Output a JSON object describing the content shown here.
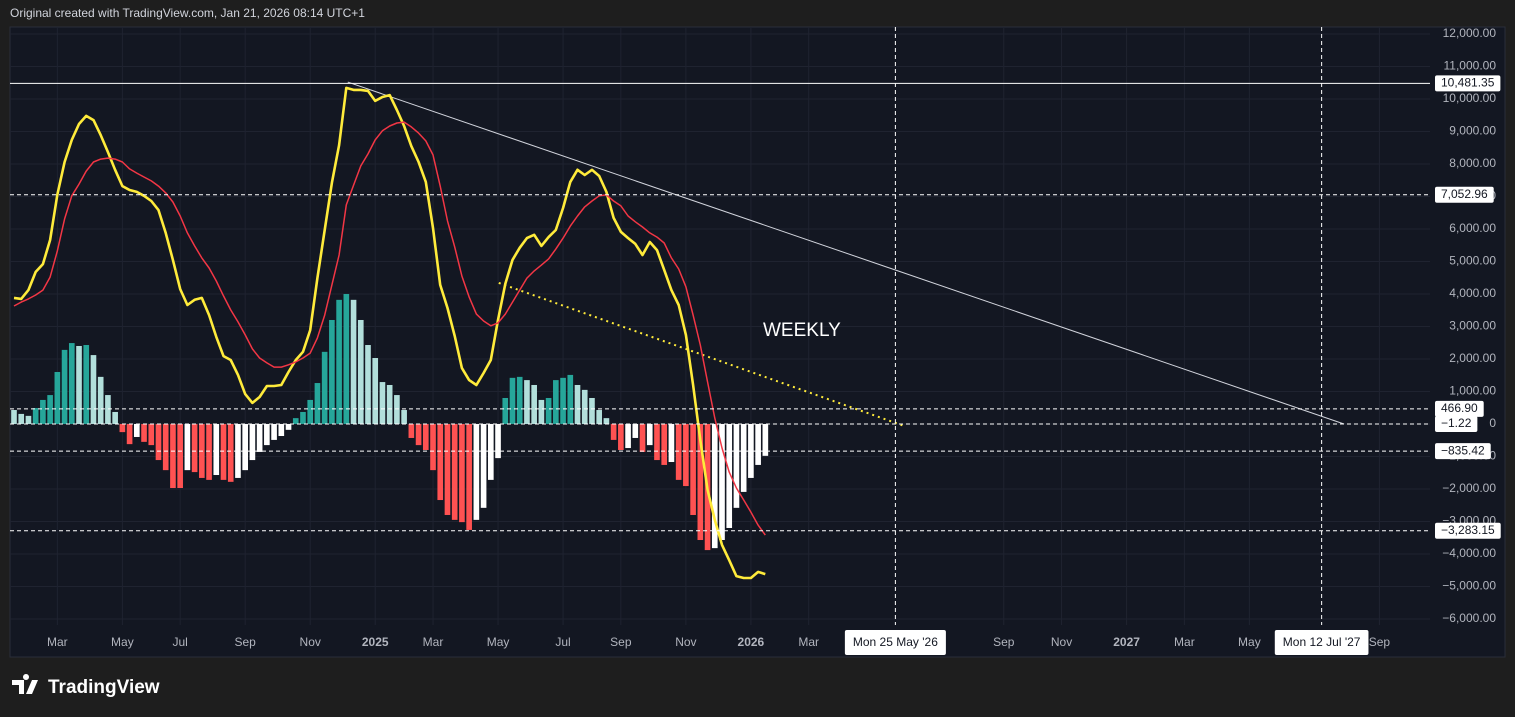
{
  "chart_data": {
    "type": "macd",
    "header": "Original created with TradingView.com, Jan 21, 2026 08:14 UTC+1",
    "brand": "TradingView",
    "annotation": "WEEKLY",
    "categories": [
      null,
      null,
      null,
      null,
      null,
      null,
      "Mar",
      null,
      null,
      null,
      null,
      null,
      null,
      null,
      null,
      "May",
      null,
      null,
      null,
      null,
      null,
      null,
      null,
      "Jul",
      null,
      null,
      null,
      null,
      null,
      null,
      null,
      null,
      "Sep",
      null,
      null,
      null,
      null,
      null,
      null,
      null,
      null,
      "Nov",
      null,
      null,
      null,
      null,
      null,
      null,
      null,
      null,
      "2025",
      null,
      null,
      null,
      null,
      null,
      null,
      null,
      "Mar",
      null,
      null,
      null,
      null,
      null,
      null,
      null,
      null,
      "May",
      null,
      null,
      null,
      null,
      null,
      null,
      null,
      null,
      "Jul",
      null,
      null,
      null,
      null,
      null,
      null,
      null,
      "Sep",
      null,
      null,
      null,
      null,
      null,
      null,
      null,
      null,
      "Nov",
      null,
      null,
      null,
      null,
      null,
      null,
      null,
      null,
      "2026",
      null,
      null,
      null,
      null,
      null,
      null,
      null,
      "Mar",
      null,
      null,
      null,
      null,
      null,
      null,
      null,
      null,
      null,
      null,
      null,
      "Mon 25 May '26",
      null,
      null,
      null,
      null,
      null,
      null,
      null,
      null,
      null,
      null,
      null,
      null,
      null,
      null,
      "Sep",
      null,
      null,
      null,
      null,
      null,
      null,
      null,
      "Nov",
      null,
      null,
      null,
      null,
      null,
      null,
      null,
      null,
      "2027",
      null,
      null,
      null,
      null,
      null,
      null,
      null,
      "Mar",
      null,
      null,
      null,
      null,
      null,
      null,
      null,
      null,
      "May",
      null,
      null,
      null,
      null,
      null,
      null,
      null,
      null,
      null,
      "Mon 12 Jul '27",
      null,
      null,
      null,
      null,
      null,
      null,
      null,
      "Sep",
      null,
      null,
      null,
      null,
      null,
      null
    ],
    "crosshairs": [
      "Mon 25 May '26",
      "Mon 12 Jul '27"
    ],
    "histogram": {
      "colors": {
        "pos_up": "#26a69a",
        "pos_down": "#b2dfdb",
        "neg_down": "#ff5252",
        "neg_up": "#ffffff"
      },
      "values": [
        430,
        310,
        250,
        490,
        740,
        890,
        1600,
        2280,
        2490,
        2400,
        2430,
        2120,
        1450,
        890,
        370,
        -250,
        -620,
        -400,
        -550,
        -650,
        -1110,
        -1420,
        -1970,
        -1970,
        -1420,
        -1480,
        -1660,
        -1720,
        -1570,
        -1720,
        -1780,
        -1660,
        -1420,
        -1110,
        -860,
        -650,
        -490,
        -370,
        -180,
        180,
        370,
        740,
        1260,
        2220,
        3200,
        3820,
        4000,
        3820,
        3200,
        2430,
        2030,
        1290,
        1200,
        890,
        430,
        -430,
        -650,
        -800,
        -1420,
        -2340,
        -2800,
        -2950,
        -3020,
        -3260,
        -2950,
        -2580,
        -1720,
        -1050,
        800,
        1420,
        1450,
        1350,
        1200,
        740,
        800,
        1350,
        1420,
        1510,
        1200,
        1050,
        800,
        430,
        180,
        -490,
        -800,
        -740,
        -430,
        -860,
        -650,
        -1110,
        -1260,
        -1170,
        -1720,
        -1910,
        -2800,
        -3570,
        -3880,
        -3820,
        -3570,
        -3200,
        -2580,
        -2090,
        -1660,
        -1260,
        -980,
        null,
        null,
        null,
        null,
        null,
        null,
        null,
        null,
        null,
        null,
        null,
        null,
        null,
        null,
        null,
        null,
        null,
        null,
        null,
        null,
        null,
        null,
        null,
        null,
        null,
        null,
        null,
        null,
        null,
        null,
        null,
        null,
        null,
        null,
        null,
        null,
        null,
        null,
        null,
        null,
        null,
        null,
        null,
        null,
        null,
        null,
        null,
        null,
        null,
        null,
        null,
        null,
        null,
        null,
        null,
        null,
        null,
        null,
        null,
        null,
        null,
        null,
        null,
        null,
        null,
        null,
        null,
        null,
        null,
        null,
        null,
        null,
        null,
        null,
        null,
        null,
        null,
        null,
        null,
        null,
        null,
        null,
        null,
        null,
        null,
        null,
        null,
        null,
        null,
        null,
        null
      ]
    },
    "series": [
      {
        "name": "MACD",
        "color": "#ffeb3b",
        "values": [
          3880,
          3850,
          4120,
          4680,
          4920,
          5660,
          7050,
          8060,
          8740,
          9230,
          9480,
          9350,
          8890,
          8370,
          7820,
          7320,
          7200,
          7140,
          7020,
          6860,
          6580,
          5880,
          5050,
          4150,
          3660,
          3820,
          3880,
          3350,
          2680,
          2090,
          1970,
          1510,
          920,
          650,
          830,
          1170,
          1170,
          1200,
          1600,
          1970,
          2220,
          2890,
          4490,
          5970,
          7420,
          8580,
          10340,
          10280,
          10280,
          10250,
          9940,
          10060,
          10120,
          9660,
          9170,
          8550,
          8060,
          7450,
          6030,
          4280,
          3570,
          2710,
          1720,
          1350,
          1200,
          1570,
          1970,
          3200,
          4310,
          5050,
          5420,
          5720,
          5820,
          5480,
          5750,
          5970,
          6650,
          7450,
          7820,
          7660,
          7820,
          7630,
          7140,
          6340,
          5910,
          5720,
          5540,
          5200,
          5600,
          5350,
          4740,
          4120,
          3660,
          2740,
          1200,
          -490,
          -2030,
          -2950,
          -3720,
          -4190,
          -4680,
          -4740,
          -4740,
          -4550,
          -4620,
          null,
          null,
          null,
          null,
          null,
          null,
          null,
          null,
          null,
          null,
          null,
          null,
          null,
          null,
          null,
          null,
          null,
          null,
          null,
          null,
          null,
          null,
          null,
          null,
          null,
          null,
          null,
          null,
          null,
          null,
          null,
          null,
          null,
          null,
          null,
          null,
          null,
          null,
          null,
          null,
          null,
          null,
          null,
          null,
          null,
          null,
          null,
          null,
          null,
          null,
          null,
          null,
          null,
          null,
          null,
          null,
          null,
          null,
          null,
          null,
          null,
          null,
          null,
          null,
          null,
          null,
          null,
          null,
          null,
          null,
          null,
          null,
          null,
          null,
          null,
          null,
          null,
          null,
          null,
          null,
          null,
          null,
          null,
          null,
          null,
          null,
          null,
          null,
          null,
          null,
          null
        ]
      },
      {
        "name": "Signal",
        "color": "#f23645",
        "values": [
          3630,
          3750,
          3850,
          3970,
          4120,
          4520,
          5320,
          6310,
          7020,
          7380,
          7780,
          8060,
          8150,
          8180,
          8150,
          8060,
          7850,
          7720,
          7600,
          7480,
          7320,
          7110,
          6830,
          6400,
          5880,
          5480,
          5110,
          4800,
          4400,
          3940,
          3510,
          3140,
          2740,
          2310,
          2030,
          1880,
          1750,
          1750,
          1820,
          1910,
          2030,
          2180,
          2650,
          3350,
          4280,
          5200,
          6740,
          7350,
          7940,
          8310,
          8740,
          9020,
          9170,
          9260,
          9290,
          9140,
          8950,
          8710,
          8280,
          7320,
          6250,
          5450,
          4550,
          3910,
          3380,
          3170,
          3020,
          3110,
          3380,
          3750,
          4120,
          4490,
          4710,
          4890,
          5080,
          5380,
          5720,
          6090,
          6400,
          6680,
          6860,
          7020,
          7050,
          6860,
          6710,
          6400,
          6220,
          6060,
          5880,
          5750,
          5570,
          5110,
          4770,
          4220,
          3350,
          2430,
          1290,
          180,
          -740,
          -1480,
          -1970,
          -2340,
          -2710,
          -3110,
          -3420,
          null,
          null,
          null,
          null,
          null,
          null,
          null,
          null,
          null,
          null,
          null,
          null,
          null,
          null,
          null,
          null,
          null,
          null,
          null,
          null,
          null,
          null,
          null,
          null,
          null,
          null,
          null,
          null,
          null,
          null,
          null,
          null,
          null,
          null,
          null,
          null,
          null,
          null,
          null,
          null,
          null,
          null,
          null,
          null,
          null,
          null,
          null,
          null,
          null,
          null,
          null,
          null,
          null,
          null,
          null,
          null,
          null,
          null,
          null,
          null,
          null,
          null,
          null,
          null,
          null,
          null,
          null,
          null,
          null,
          null,
          null,
          null,
          null,
          null,
          null,
          null,
          null,
          null,
          null,
          null,
          null,
          null,
          null,
          null,
          null,
          null,
          null,
          null,
          null,
          null,
          null
        ]
      }
    ],
    "ylim": [
      -6185,
      12215
    ],
    "yticks": [
      {
        "value": 12000,
        "label": "12,000.00"
      },
      {
        "value": 11000,
        "label": "11,000.00"
      },
      {
        "value": 10000,
        "label": "10,000.00"
      },
      {
        "value": 9000,
        "label": "9,000.00"
      },
      {
        "value": 8000,
        "label": "8,000.00"
      },
      {
        "value": 7000,
        "label": "7,000.00"
      },
      {
        "value": 6000,
        "label": "6,000.00"
      },
      {
        "value": 5000,
        "label": "5,000.00"
      },
      {
        "value": 4000,
        "label": "4,000.00"
      },
      {
        "value": 3000,
        "label": "3,000.00"
      },
      {
        "value": 2000,
        "label": "2,000.00"
      },
      {
        "value": 1000,
        "label": "1,000.00"
      },
      {
        "value": 0,
        "label": "0"
      },
      {
        "value": -1000,
        "label": "−1,000.00"
      },
      {
        "value": -2000,
        "label": "−2,000.00"
      },
      {
        "value": -3000,
        "label": "−3,000.00"
      },
      {
        "value": -4000,
        "label": "−4,000.00"
      },
      {
        "value": -5000,
        "label": "−5,000.00"
      },
      {
        "value": -6000,
        "label": "−6,000.00"
      }
    ],
    "hlines": [
      {
        "value": 10481.35,
        "label": "10,481.35",
        "style": "solid"
      },
      {
        "value": 7052.96,
        "label": "7,052.96",
        "style": "dashed"
      },
      {
        "value": 466.9,
        "label": "466.90",
        "style": "dashed"
      },
      {
        "value": -1.22,
        "label": "−1.22",
        "style": "dashed"
      },
      {
        "value": -835.42,
        "label": "−835.42",
        "style": "dashed"
      },
      {
        "value": -3283.15,
        "label": "−3,283.15",
        "style": "dashed"
      }
    ],
    "trendlines": [
      {
        "color": "#d1d4dc",
        "style": "solid",
        "from": [
          46.2,
          10520
        ],
        "to": [
          184.1,
          0
        ]
      },
      {
        "color": "#ffeb3b",
        "style": "dotted",
        "from": [
          67.1,
          4340
        ],
        "to": [
          123.2,
          -60
        ]
      }
    ],
    "grid": true
  }
}
